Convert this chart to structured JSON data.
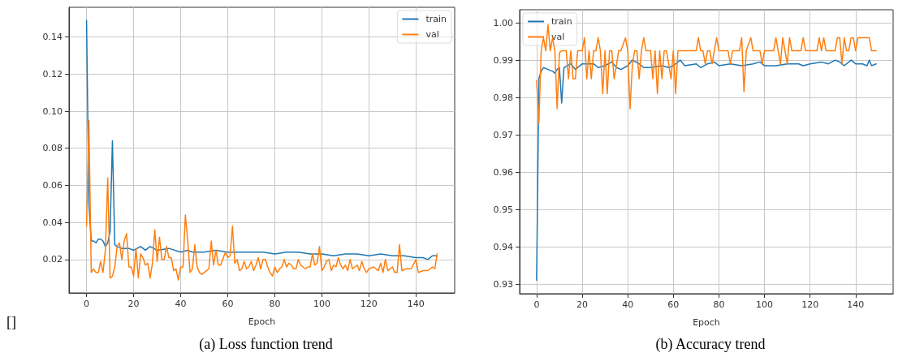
{
  "chart_data": [
    {
      "type": "line",
      "title": "(a) Loss function trend",
      "xlabel": "Epoch",
      "annotations": [
        "[]"
      ],
      "xlim": [
        -7.45,
        156.45
      ],
      "xticks": [
        0,
        20,
        40,
        60,
        80,
        100,
        120,
        140
      ],
      "ylim": [
        0.002,
        0.156
      ],
      "yticks": [
        0.02,
        0.04,
        0.06,
        0.08,
        {
          "value": 0.1,
          "label": "0.10"
        },
        0.12,
        0.14
      ],
      "grid": true,
      "legend": "top right",
      "marker": "none",
      "line_style": "solid",
      "series": [
        {
          "name": "train",
          "color": "#1f77b4",
          "x": [
            0,
            1,
            2,
            3,
            4,
            5,
            6,
            7,
            8,
            9,
            10,
            11,
            12,
            13,
            15,
            18,
            20,
            23,
            25,
            27,
            30,
            35,
            40,
            43,
            45,
            50,
            55,
            60,
            65,
            70,
            75,
            80,
            85,
            90,
            95,
            100,
            105,
            110,
            115,
            120,
            125,
            130,
            135,
            140,
            143,
            145,
            147,
            149
          ],
          "values": [
            0.149,
            0.05,
            0.03,
            0.03,
            0.029,
            0.031,
            0.031,
            0.03,
            0.027,
            0.029,
            0.035,
            0.084,
            0.028,
            0.027,
            0.026,
            0.026,
            0.025,
            0.027,
            0.025,
            0.027,
            0.025,
            0.026,
            0.024,
            0.025,
            0.024,
            0.024,
            0.025,
            0.024,
            0.024,
            0.024,
            0.024,
            0.023,
            0.024,
            0.024,
            0.023,
            0.023,
            0.022,
            0.023,
            0.023,
            0.022,
            0.023,
            0.022,
            0.022,
            0.021,
            0.021,
            0.02,
            0.022,
            0.022
          ]
        },
        {
          "name": "val",
          "color": "#ff7f0e",
          "x": [
            0,
            1,
            2,
            3,
            4,
            5,
            6,
            7,
            8,
            9,
            10,
            11,
            12,
            13,
            14,
            15,
            16,
            17,
            18,
            19,
            20,
            21,
            22,
            23,
            24,
            25,
            26,
            27,
            28,
            29,
            30,
            31,
            32,
            33,
            34,
            35,
            36,
            37,
            38,
            39,
            40,
            41,
            42,
            43,
            44,
            45,
            46,
            47,
            48,
            49,
            50,
            52,
            53,
            54,
            55,
            56,
            57,
            59,
            60,
            61,
            62,
            63,
            64,
            65,
            66,
            67,
            68,
            69,
            70,
            71,
            72,
            73,
            74,
            75,
            76,
            77,
            78,
            79,
            80,
            81,
            82,
            83,
            84,
            85,
            86,
            87,
            88,
            89,
            90,
            91,
            92,
            93,
            94,
            95,
            96,
            97,
            98,
            99,
            100,
            101,
            102,
            103,
            104,
            105,
            106,
            107,
            108,
            109,
            110,
            111,
            112,
            113,
            114,
            115,
            116,
            117,
            118,
            119,
            120,
            122,
            124,
            125,
            126,
            127,
            128,
            130,
            131,
            132,
            133,
            134,
            136,
            138,
            140,
            141,
            143,
            145,
            147,
            148,
            149
          ],
          "values": [
            0.038,
            0.095,
            0.013,
            0.015,
            0.013,
            0.013,
            0.019,
            0.013,
            0.025,
            0.064,
            0.01,
            0.011,
            0.016,
            0.027,
            0.029,
            0.02,
            0.03,
            0.034,
            0.016,
            0.016,
            0.011,
            0.026,
            0.01,
            0.023,
            0.021,
            0.017,
            0.018,
            0.01,
            0.018,
            0.036,
            0.019,
            0.032,
            0.02,
            0.02,
            0.027,
            0.021,
            0.021,
            0.014,
            0.015,
            0.009,
            0.016,
            0.016,
            0.044,
            0.03,
            0.013,
            0.015,
            0.028,
            0.016,
            0.013,
            0.012,
            0.013,
            0.015,
            0.03,
            0.017,
            0.025,
            0.017,
            0.017,
            0.024,
            0.021,
            0.022,
            0.038,
            0.018,
            0.02,
            0.014,
            0.015,
            0.019,
            0.015,
            0.016,
            0.019,
            0.014,
            0.017,
            0.021,
            0.015,
            0.02,
            0.02,
            0.016,
            0.013,
            0.011,
            0.016,
            0.013,
            0.015,
            0.016,
            0.02,
            0.016,
            0.018,
            0.017,
            0.015,
            0.015,
            0.02,
            0.017,
            0.016,
            0.015,
            0.016,
            0.016,
            0.023,
            0.017,
            0.018,
            0.027,
            0.014,
            0.016,
            0.019,
            0.02,
            0.014,
            0.017,
            0.016,
            0.021,
            0.017,
            0.015,
            0.017,
            0.014,
            0.02,
            0.015,
            0.016,
            0.017,
            0.014,
            0.019,
            0.015,
            0.013,
            0.015,
            0.016,
            0.014,
            0.018,
            0.013,
            0.02,
            0.014,
            0.016,
            0.013,
            0.013,
            0.028,
            0.014,
            0.015,
            0.015,
            0.02,
            0.013,
            0.014,
            0.014,
            0.016,
            0.015,
            0.023
          ]
        }
      ]
    },
    {
      "type": "line",
      "title": "(b) Accuracy trend",
      "xlabel": "Epoch",
      "xlim": [
        -7.45,
        156.45
      ],
      "xticks": [
        0,
        20,
        40,
        60,
        80,
        100,
        120,
        140
      ],
      "ylim": [
        0.9274,
        1.0035
      ],
      "yticks": [
        0.93,
        0.94,
        0.95,
        0.96,
        0.97,
        0.98,
        0.99,
        {
          "value": 1,
          "label": "1.00"
        }
      ],
      "grid": true,
      "legend": "top left",
      "marker": "none",
      "line_style": "solid",
      "series": [
        {
          "name": "train",
          "color": "#1f77b4",
          "x": [
            0,
            1,
            2,
            3,
            5,
            7,
            8,
            9,
            10,
            11,
            12,
            15,
            17,
            20,
            25,
            27,
            30,
            33,
            35,
            37,
            40,
            42,
            45,
            47,
            50,
            55,
            58,
            60,
            63,
            65,
            70,
            72,
            75,
            78,
            80,
            85,
            90,
            95,
            98,
            100,
            105,
            110,
            115,
            117,
            120,
            125,
            128,
            131,
            133,
            135,
            138,
            140,
            143,
            145,
            146,
            147,
            149
          ],
          "values": [
            0.931,
            0.985,
            0.987,
            0.988,
            0.9875,
            0.987,
            0.9865,
            0.9875,
            0.988,
            0.9785,
            0.988,
            0.989,
            0.9875,
            0.989,
            0.989,
            0.988,
            0.9885,
            0.9895,
            0.988,
            0.9875,
            0.9885,
            0.99,
            0.989,
            0.988,
            0.988,
            0.9885,
            0.988,
            0.9885,
            0.99,
            0.9885,
            0.989,
            0.988,
            0.989,
            0.9895,
            0.9885,
            0.989,
            0.9885,
            0.989,
            0.9895,
            0.9885,
            0.9885,
            0.989,
            0.989,
            0.9885,
            0.989,
            0.9895,
            0.989,
            0.99,
            0.9895,
            0.9885,
            0.99,
            0.989,
            0.989,
            0.9885,
            0.99,
            0.9885,
            0.989
          ]
        },
        {
          "name": "val",
          "color": "#ff7f0e",
          "x": [
            0,
            1,
            2,
            3,
            4,
            5,
            6,
            7,
            8,
            9,
            10,
            11,
            13,
            14,
            15,
            16,
            17,
            18,
            20,
            21,
            22,
            23,
            24,
            25,
            26,
            27,
            28,
            29,
            30,
            31,
            32,
            33,
            34,
            35,
            36,
            37,
            39,
            40,
            41,
            42,
            43,
            44,
            45,
            46,
            47,
            48,
            50,
            51,
            52,
            53,
            54,
            55,
            56,
            57,
            59,
            60,
            61,
            62,
            70,
            71,
            72,
            73,
            74,
            75,
            76,
            77,
            79,
            80,
            84,
            85,
            86,
            89,
            90,
            91,
            92,
            94,
            95,
            98,
            99,
            100,
            104,
            105,
            106,
            107,
            108,
            109,
            110,
            111,
            112,
            116,
            117,
            118,
            123,
            124,
            125,
            126,
            127,
            131,
            132,
            133,
            134,
            135,
            136,
            137,
            138,
            139,
            140,
            141,
            146,
            147,
            149
          ],
          "values": [
            0.9845,
            0.973,
            0.9925,
            0.996,
            0.9925,
            0.9995,
            0.9925,
            0.996,
            0.9925,
            0.977,
            0.992,
            0.9925,
            0.9925,
            0.985,
            0.9925,
            0.985,
            0.985,
            0.9925,
            0.9925,
            0.996,
            0.985,
            0.9925,
            0.985,
            0.9925,
            0.9925,
            0.996,
            0.9925,
            0.981,
            0.9925,
            0.981,
            0.9925,
            0.9925,
            0.985,
            0.9885,
            0.9925,
            0.9925,
            0.996,
            0.9925,
            0.977,
            0.9885,
            0.9925,
            0.9925,
            0.985,
            0.9925,
            0.996,
            0.9925,
            0.9925,
            0.985,
            0.9925,
            0.981,
            0.9925,
            0.985,
            0.9925,
            0.9925,
            0.985,
            0.9925,
            0.981,
            0.9925,
            0.9925,
            0.996,
            0.9925,
            0.9925,
            0.989,
            0.9925,
            0.9925,
            0.989,
            0.996,
            0.9925,
            0.9925,
            0.989,
            0.9925,
            0.9925,
            0.996,
            0.9815,
            0.9925,
            0.996,
            0.9925,
            0.9925,
            0.989,
            0.9925,
            0.9925,
            0.996,
            0.9925,
            0.989,
            0.996,
            0.9925,
            0.989,
            0.996,
            0.9925,
            0.9925,
            0.996,
            0.9925,
            0.9925,
            0.996,
            0.9925,
            0.996,
            0.9925,
            0.9925,
            0.996,
            0.996,
            0.989,
            0.996,
            0.9925,
            0.9925,
            0.996,
            0.996,
            0.9925,
            0.996,
            0.996,
            0.9925,
            0.9925
          ]
        }
      ]
    }
  ]
}
